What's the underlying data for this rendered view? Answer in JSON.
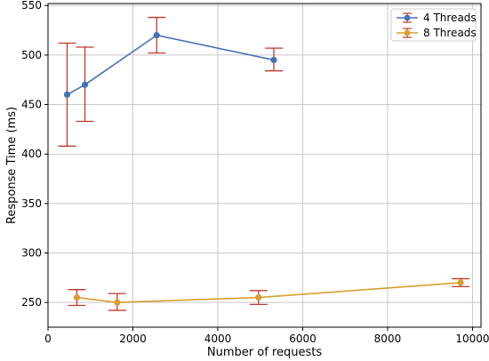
{
  "chart_data": {
    "type": "line",
    "title": "",
    "xlabel": "Number of requests",
    "ylabel": "Response Time (ms)",
    "xlim": [
      0,
      10200
    ],
    "ylim": [
      225,
      552
    ],
    "xticks": [
      0,
      2000,
      4000,
      6000,
      8000,
      10000
    ],
    "yticks": [
      250,
      300,
      350,
      400,
      450,
      500,
      550
    ],
    "grid": true,
    "legend_position": "top-right",
    "error_bar_color": "#c0392b",
    "series": [
      {
        "name": "4 Threads",
        "color": "#4472b8",
        "marker": "circle",
        "x": [
          450,
          870,
          2560,
          5320
        ],
        "y": [
          460,
          470,
          520,
          495
        ],
        "yerr_low": [
          408,
          433,
          502,
          484
        ],
        "yerr_high": [
          512,
          508,
          538,
          507
        ]
      },
      {
        "name": "8 Threads",
        "color": "#d4a030",
        "marker": "circle",
        "x": [
          680,
          1630,
          4960,
          9720
        ],
        "y": [
          255,
          250,
          255,
          270
        ],
        "yerr_low": [
          247,
          242,
          248,
          266
        ],
        "yerr_high": [
          263,
          259,
          262,
          274
        ]
      }
    ]
  }
}
